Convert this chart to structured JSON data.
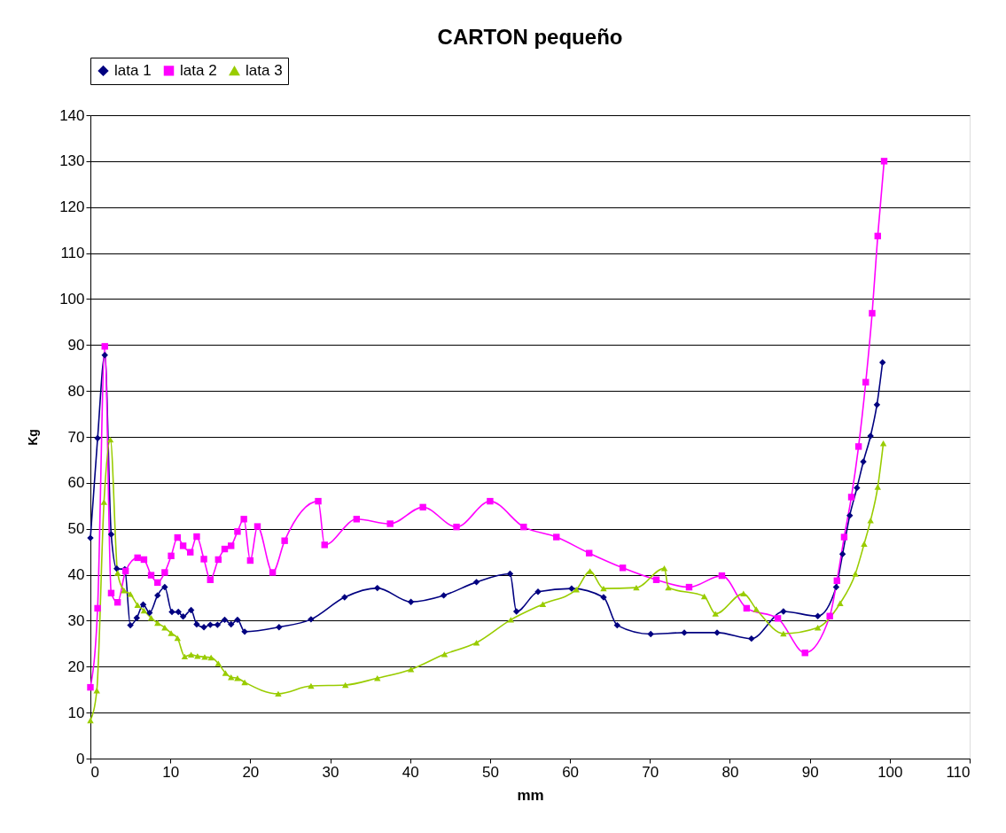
{
  "chart_data": {
    "type": "line",
    "title": "CARTON pequeño",
    "xlabel": "mm",
    "ylabel": "Kg",
    "xlim": [
      0,
      110
    ],
    "xticks": [
      0,
      10,
      20,
      30,
      40,
      50,
      60,
      70,
      80,
      90,
      100,
      110
    ],
    "ylim": [
      0,
      140
    ],
    "yticks": [
      0,
      10,
      20,
      30,
      40,
      50,
      60,
      70,
      80,
      90,
      100,
      110,
      120,
      130,
      140
    ],
    "grid": "y",
    "legend": "top",
    "line_style": "solid",
    "series": [
      {
        "name": "lata 1",
        "color": "#000080",
        "marker": "diamond",
        "x": [
          0,
          0.9,
          1.8,
          2.6,
          3.3,
          4.3,
          5.0,
          5.8,
          6.6,
          7.4,
          8.4,
          9.3,
          10.2,
          11.0,
          11.6,
          12.6,
          13.3,
          14.2,
          15.0,
          15.9,
          16.8,
          17.6,
          18.4,
          19.3,
          23.6,
          27.6,
          31.8,
          35.9,
          40.1,
          44.2,
          48.3,
          52.5,
          53.3,
          56.0,
          60.2,
          64.2,
          65.9,
          70.1,
          74.3,
          78.4,
          82.7,
          86.7,
          91.0,
          93.3,
          94.1,
          95.0,
          95.9,
          96.7,
          97.6,
          98.4,
          99.1
        ],
        "values": [
          48,
          69.7,
          87.8,
          48.8,
          41.3,
          41.2,
          29,
          30.6,
          33.5,
          31.7,
          35.5,
          37.3,
          31.9,
          31.9,
          30.9,
          32.3,
          29.2,
          28.6,
          29.1,
          29.1,
          30.2,
          29.2,
          30.2,
          27.6,
          28.6,
          30.3,
          35.1,
          37.1,
          34.1,
          35.5,
          38.4,
          40.2,
          32,
          36.3,
          37,
          35.1,
          29,
          27.1,
          27.4,
          27.4,
          26.1,
          32,
          31,
          37.3,
          44.5,
          52.9,
          58.9,
          64.6,
          70.2,
          77,
          86.2
        ]
      },
      {
        "name": "lata 2",
        "color": "#ff00ff",
        "marker": "square",
        "x": [
          0,
          0.9,
          1.8,
          2.6,
          3.4,
          4.4,
          5.9,
          6.7,
          7.6,
          8.4,
          9.3,
          10.1,
          10.9,
          11.6,
          12.5,
          13.3,
          14.2,
          15.0,
          16.0,
          16.8,
          17.6,
          18.4,
          19.2,
          20.0,
          20.9,
          22.8,
          24.3,
          28.5,
          29.3,
          33.3,
          37.5,
          41.6,
          45.8,
          50.0,
          54.2,
          58.3,
          62.4,
          66.6,
          70.8,
          74.9,
          79.0,
          82.1,
          86.0,
          89.4,
          92.5,
          93.4,
          94.3,
          95.2,
          96.1,
          97.0,
          97.8,
          98.5,
          99.3
        ],
        "values": [
          15.5,
          32.7,
          89.7,
          36,
          34,
          40.8,
          43.7,
          43.3,
          39.9,
          38.3,
          40.5,
          44.1,
          48.1,
          46.3,
          44.9,
          48.3,
          43.4,
          38.9,
          43.3,
          45.6,
          46.3,
          49.4,
          52.1,
          43.1,
          50.5,
          40.5,
          47.4,
          56,
          46.5,
          52.1,
          51.1,
          54.7,
          50.4,
          56,
          50.4,
          48.2,
          44.7,
          41.5,
          38.9,
          37.3,
          39.8,
          32.7,
          30.5,
          23,
          31,
          38.7,
          48.2,
          56.9,
          67.9,
          81.9,
          96.9,
          113.7,
          130
        ]
      },
      {
        "name": "lata 3",
        "color": "#99cc00",
        "marker": "triangle",
        "x": [
          0,
          0.8,
          1.7,
          2.5,
          3.4,
          4.2,
          5.0,
          5.9,
          6.7,
          7.6,
          8.4,
          9.3,
          10.1,
          10.9,
          11.8,
          12.6,
          13.4,
          14.3,
          15.1,
          16.0,
          16.9,
          17.6,
          18.4,
          19.3,
          23.5,
          27.6,
          31.9,
          35.9,
          40.1,
          44.3,
          48.3,
          52.6,
          56.6,
          60.8,
          62.5,
          64.2,
          68.3,
          71.8,
          72.3,
          76.8,
          78.2,
          81.7,
          83.3,
          86.7,
          91.0,
          93.8,
          95.7,
          96.8,
          97.6,
          98.5,
          99.2
        ],
        "values": [
          8.3,
          14.8,
          55.8,
          69.4,
          40.4,
          36.6,
          35.8,
          33.4,
          32.2,
          30.6,
          29.5,
          28.5,
          27.3,
          26.2,
          22.2,
          22.6,
          22.3,
          22.1,
          22.0,
          20.7,
          18.6,
          17.7,
          17.5,
          16.6,
          14.1,
          15.8,
          16.0,
          17.5,
          19.4,
          22.7,
          25.2,
          30.2,
          33.6,
          36.8,
          40.8,
          37,
          37.2,
          41.4,
          37.2,
          35.3,
          31.5,
          35.9,
          32.5,
          27.2,
          28.5,
          33.8,
          40.2,
          46.7,
          51.8,
          59.1,
          68.6
        ]
      }
    ]
  }
}
